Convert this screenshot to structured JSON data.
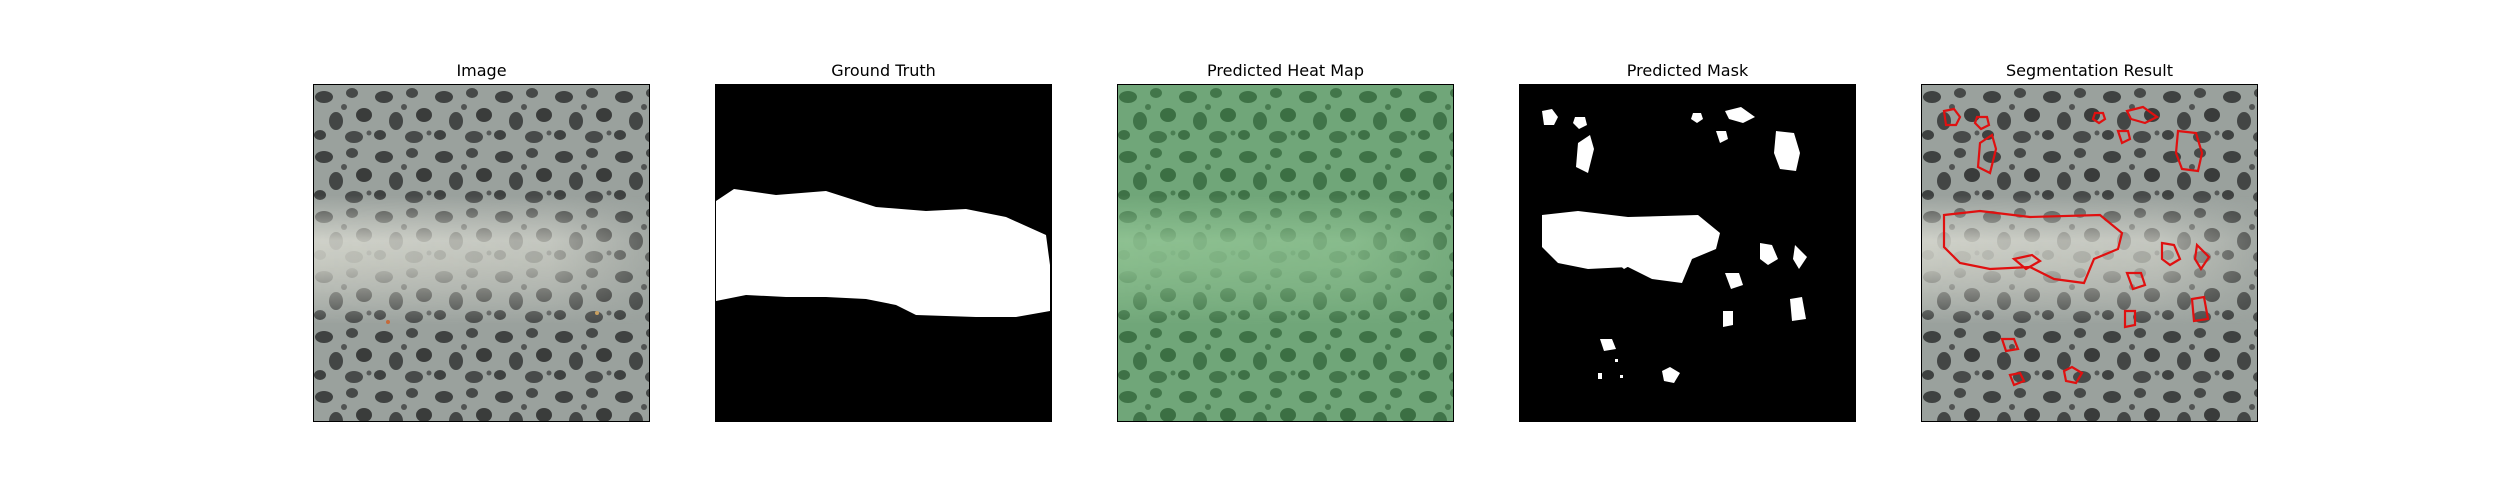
{
  "figure": {
    "panels": [
      {
        "title": "Image",
        "type": "texture-image"
      },
      {
        "title": "Ground Truth",
        "type": "mask"
      },
      {
        "title": "Predicted Heat Map",
        "type": "heatmap-overlay"
      },
      {
        "title": "Predicted Mask",
        "type": "mask"
      },
      {
        "title": "Segmentation Result",
        "type": "contour-overlay"
      }
    ],
    "colors": {
      "background": "#ffffff",
      "frame": "#000000",
      "texture_light": "#9aa19d",
      "texture_dark": "#3d3f3e",
      "defect_band": "#d6d7cf",
      "mask_fg": "#ffffff",
      "mask_bg": "#000000",
      "heat_tint": "#3fae4d",
      "contour": "#e01010"
    }
  }
}
